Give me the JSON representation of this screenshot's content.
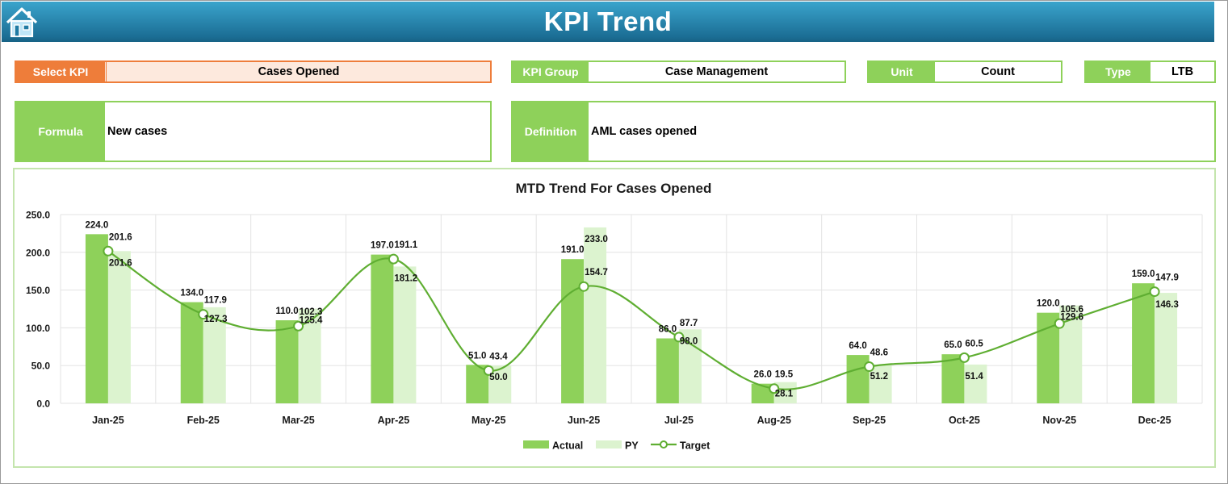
{
  "header": {
    "title": "KPI Trend",
    "home_icon": "home-icon"
  },
  "selectors": {
    "select_kpi": {
      "label": "Select KPI",
      "value": "Cases Opened"
    },
    "kpi_group": {
      "label": "KPI Group",
      "value": "Case Management"
    },
    "unit": {
      "label": "Unit",
      "value": "Count"
    },
    "type": {
      "label": "Type",
      "value": "LTB"
    }
  },
  "formula": {
    "label": "Formula",
    "value": "New cases"
  },
  "definition": {
    "label": "Definition",
    "value": "AML cases opened"
  },
  "colors": {
    "actual": "#8ed15a",
    "py": "#dcf3cf",
    "target": "#5fae32",
    "header": "#1f7aa3",
    "select": "#ee7d3a"
  },
  "chart_data": {
    "type": "bar",
    "title": "MTD Trend For Cases Opened",
    "categories": [
      "Jan-25",
      "Feb-25",
      "Mar-25",
      "Apr-25",
      "May-25",
      "Jun-25",
      "Jul-25",
      "Aug-25",
      "Sep-25",
      "Oct-25",
      "Nov-25",
      "Dec-25"
    ],
    "series": [
      {
        "name": "Actual",
        "type": "bar",
        "values": [
          224.0,
          134.0,
          110.0,
          197.0,
          51.0,
          191.0,
          86.0,
          26.0,
          64.0,
          65.0,
          120.0,
          159.0
        ]
      },
      {
        "name": "PY",
        "type": "bar",
        "values": [
          201.6,
          127.3,
          125.4,
          181.2,
          50.0,
          233.0,
          98.0,
          28.1,
          51.2,
          51.4,
          129.6,
          146.3
        ]
      },
      {
        "name": "Target",
        "type": "line",
        "values": [
          201.6,
          117.9,
          102.3,
          191.1,
          43.4,
          154.7,
          87.7,
          19.5,
          48.6,
          60.5,
          105.6,
          147.9
        ]
      }
    ],
    "yticks": [
      "0.0",
      "50.0",
      "100.0",
      "150.0",
      "200.0",
      "250.0"
    ],
    "ylim": [
      0,
      250
    ],
    "grid": true,
    "legend": "bottom"
  }
}
